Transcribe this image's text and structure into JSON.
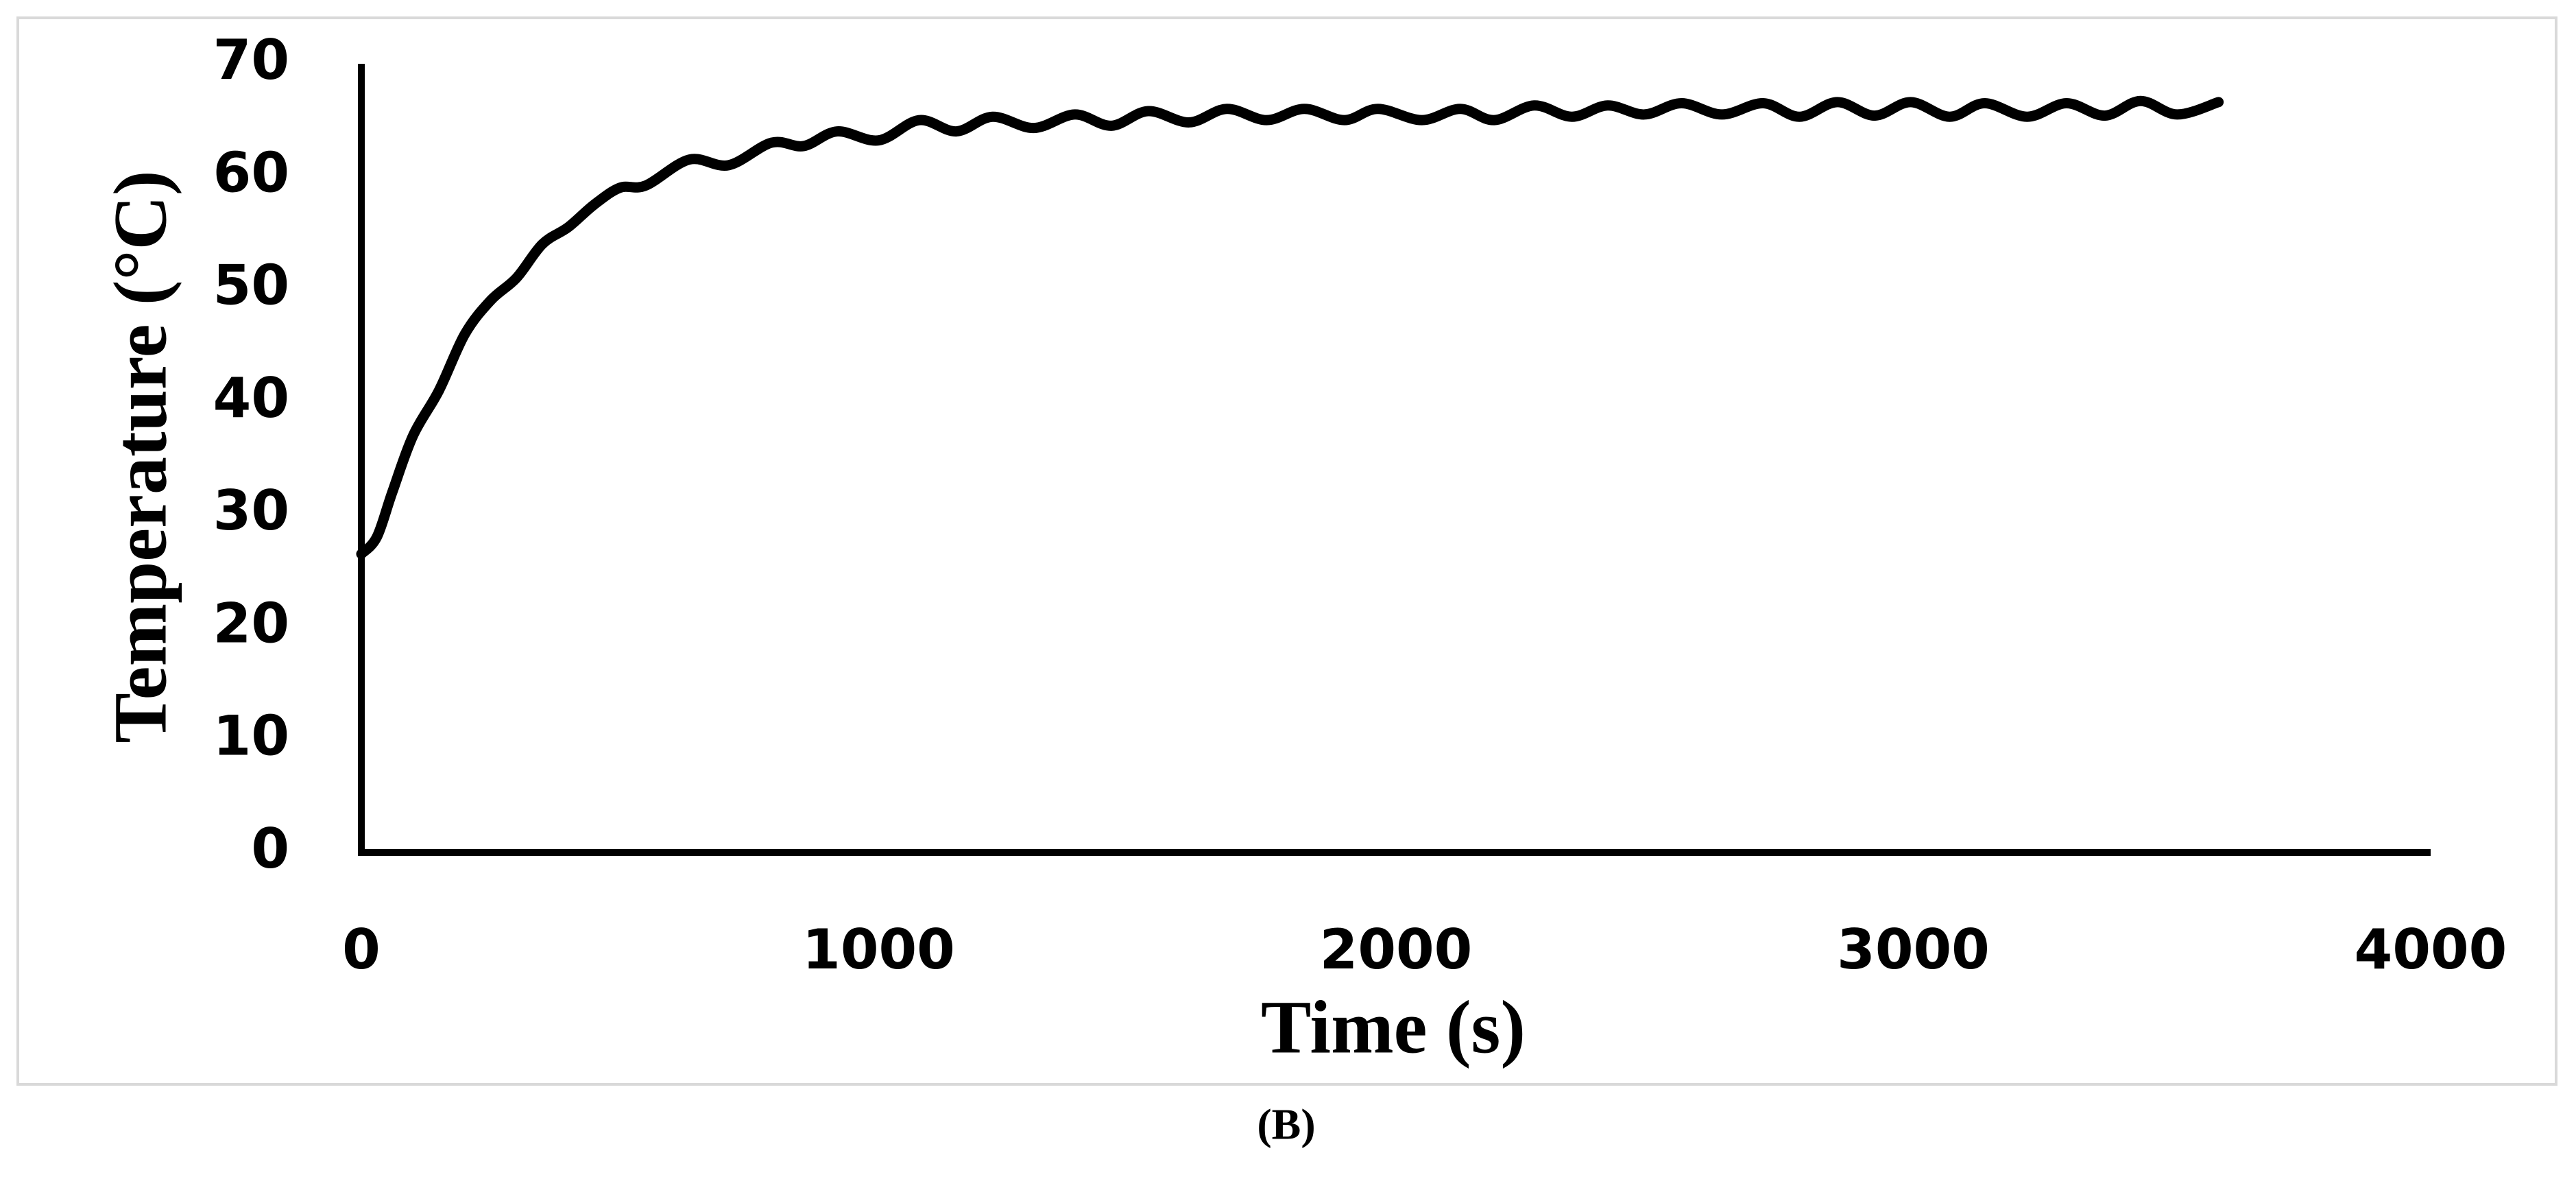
{
  "chart_data": {
    "type": "line",
    "x_label": "Time (s)",
    "y_label": "Temperature (°C)",
    "x": [
      0,
      30,
      60,
      100,
      150,
      200,
      250,
      300,
      350,
      400,
      450,
      500,
      550,
      634,
      710,
      793,
      855,
      920,
      1000,
      1078,
      1150,
      1220,
      1300,
      1379,
      1450,
      1521,
      1600,
      1673,
      1750,
      1823,
      1900,
      1965,
      2050,
      2124,
      2190,
      2267,
      2340,
      2409,
      2480,
      2552,
      2630,
      2710,
      2780,
      2853,
      2925,
      2995,
      3070,
      3138,
      3220,
      3296,
      3370,
      3439,
      3510,
      3590
    ],
    "values": [
      26.5,
      28,
      32,
      37,
      41,
      46,
      49,
      51,
      54,
      55.5,
      57.5,
      59,
      59.2,
      61.5,
      61,
      63,
      62.7,
      64,
      63.2,
      65,
      64,
      65.3,
      64.3,
      65.5,
      64.5,
      65.8,
      64.8,
      66,
      65,
      66,
      65,
      66,
      65,
      66,
      65,
      66.3,
      65.3,
      66.3,
      65.5,
      66.5,
      65.5,
      66.5,
      65.3,
      66.6,
      65.4,
      66.6,
      65.3,
      66.5,
      65.3,
      66.5,
      65.4,
      66.7,
      65.5,
      66.6
    ],
    "color": "#000000",
    "xlim": [
      0,
      4000
    ],
    "xticks": [
      0,
      1000,
      2000,
      3000,
      4000
    ],
    "ylim": [
      0,
      70
    ],
    "yticks": [
      0,
      10,
      20,
      30,
      40,
      50,
      60,
      70
    ],
    "grid": false
  },
  "caption": "(B)"
}
